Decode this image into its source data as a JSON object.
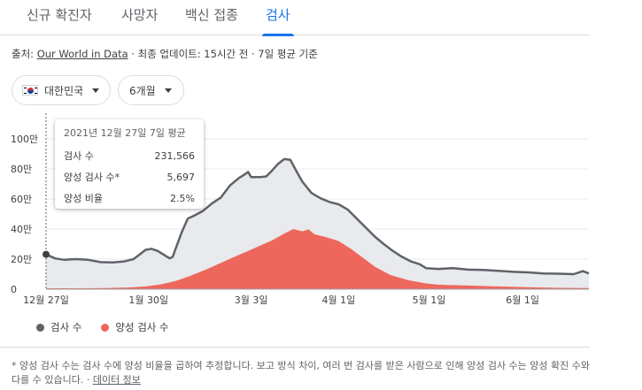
{
  "tabs": [
    {
      "label": "신규 확진자",
      "active": false
    },
    {
      "label": "사망자",
      "active": false
    },
    {
      "label": "백신 접종",
      "active": false
    },
    {
      "label": "검사",
      "active": true
    }
  ],
  "source": {
    "prefix": "출처:",
    "link": "Our World in Data",
    "suffix": "· 최종 업데이트: 15시간 전 · 7일 평균 기준"
  },
  "filters": {
    "country": {
      "flag_icon": "south-korea-flag-icon",
      "label": "대한민국"
    },
    "period": {
      "label": "6개월"
    }
  },
  "tooltip": {
    "title": "2021년 12월 27일 7일 평균",
    "rows": [
      {
        "label": "검사 수",
        "value": "231,566"
      },
      {
        "label": "양성 검사 수*",
        "value": "5,697"
      },
      {
        "label": "양성 비율",
        "value": "2.5%"
      }
    ]
  },
  "legend": [
    {
      "label": "검사 수",
      "color": "#5f6368"
    },
    {
      "label": "양성 검사 수",
      "color": "#ee675c"
    }
  ],
  "footnote": {
    "text": "* 양성 검사 수는 검사 수에 양성 비율을 곱하여 추정합니다. 보고 방식 차이, 여러 번 검사를 받은 사람으로 인해 양성 검사 수는 양성 확진 수와 다를 수 있습니다. ·",
    "link": "데이터 정보"
  },
  "chart_data": {
    "type": "area",
    "x_start_label": "12월 27일",
    "ylim": [
      0,
      1000000
    ],
    "yticks": [
      {
        "value": 0,
        "label": "0"
      },
      {
        "value": 200000,
        "label": "20만"
      },
      {
        "value": 400000,
        "label": "40만"
      },
      {
        "value": 600000,
        "label": "60만"
      },
      {
        "value": 800000,
        "label": "80만"
      },
      {
        "value": 1000000,
        "label": "100만"
      }
    ],
    "xticks": [
      {
        "day": 0,
        "label": "12월 27일"
      },
      {
        "day": 34,
        "label": "1월 30일"
      },
      {
        "day": 68,
        "label": "3월 3일"
      },
      {
        "day": 97,
        "label": "4월 1일"
      },
      {
        "day": 127,
        "label": "5월 1일"
      },
      {
        "day": 158,
        "label": "6월 1일"
      }
    ],
    "grid": true,
    "legend": "bottom-left",
    "highlight_day": 0,
    "series": [
      {
        "name": "검사 수",
        "color": "#5f6368",
        "fill": "#e8eaed",
        "points": [
          [
            0,
            231566
          ],
          [
            3,
            205000
          ],
          [
            6,
            195000
          ],
          [
            10,
            200000
          ],
          [
            14,
            195000
          ],
          [
            18,
            180000
          ],
          [
            22,
            178000
          ],
          [
            26,
            185000
          ],
          [
            29,
            200000
          ],
          [
            31,
            230000
          ],
          [
            33,
            262000
          ],
          [
            35,
            268000
          ],
          [
            37,
            255000
          ],
          [
            39,
            230000
          ],
          [
            41,
            205000
          ],
          [
            42,
            215000
          ],
          [
            43,
            270000
          ],
          [
            45,
            380000
          ],
          [
            47,
            470000
          ],
          [
            49,
            488000
          ],
          [
            52,
            520000
          ],
          [
            55,
            570000
          ],
          [
            58,
            610000
          ],
          [
            61,
            690000
          ],
          [
            64,
            740000
          ],
          [
            66,
            765000
          ],
          [
            67,
            780000
          ],
          [
            68,
            745000
          ],
          [
            71,
            745000
          ],
          [
            73,
            750000
          ],
          [
            75,
            790000
          ],
          [
            77,
            835000
          ],
          [
            79,
            865000
          ],
          [
            81,
            860000
          ],
          [
            83,
            785000
          ],
          [
            85,
            715000
          ],
          [
            88,
            640000
          ],
          [
            91,
            605000
          ],
          [
            94,
            580000
          ],
          [
            97,
            565000
          ],
          [
            100,
            530000
          ],
          [
            103,
            470000
          ],
          [
            106,
            410000
          ],
          [
            109,
            350000
          ],
          [
            112,
            300000
          ],
          [
            115,
            255000
          ],
          [
            118,
            215000
          ],
          [
            121,
            185000
          ],
          [
            124,
            165000
          ],
          [
            126,
            140000
          ],
          [
            130,
            135000
          ],
          [
            135,
            140000
          ],
          [
            140,
            130000
          ],
          [
            145,
            128000
          ],
          [
            150,
            122000
          ],
          [
            155,
            115000
          ],
          [
            160,
            112000
          ],
          [
            165,
            105000
          ],
          [
            170,
            103000
          ],
          [
            175,
            100000
          ],
          [
            178,
            120000
          ],
          [
            180,
            105000
          ]
        ]
      },
      {
        "name": "양성 검사 수",
        "color": "#ee675c",
        "fill": "#ee675c",
        "points": [
          [
            0,
            5697
          ],
          [
            10,
            6000
          ],
          [
            20,
            7500
          ],
          [
            28,
            12000
          ],
          [
            33,
            18000
          ],
          [
            38,
            32000
          ],
          [
            43,
            55000
          ],
          [
            48,
            90000
          ],
          [
            53,
            130000
          ],
          [
            58,
            175000
          ],
          [
            63,
            220000
          ],
          [
            67,
            255000
          ],
          [
            71,
            290000
          ],
          [
            75,
            325000
          ],
          [
            79,
            370000
          ],
          [
            82,
            400000
          ],
          [
            85,
            385000
          ],
          [
            87,
            398000
          ],
          [
            89,
            365000
          ],
          [
            93,
            345000
          ],
          [
            97,
            320000
          ],
          [
            101,
            270000
          ],
          [
            105,
            210000
          ],
          [
            109,
            150000
          ],
          [
            114,
            95000
          ],
          [
            120,
            60000
          ],
          [
            126,
            38000
          ],
          [
            130,
            30000
          ],
          [
            140,
            24000
          ],
          [
            150,
            18000
          ],
          [
            160,
            13000
          ],
          [
            170,
            9000
          ],
          [
            180,
            7000
          ]
        ]
      }
    ]
  }
}
